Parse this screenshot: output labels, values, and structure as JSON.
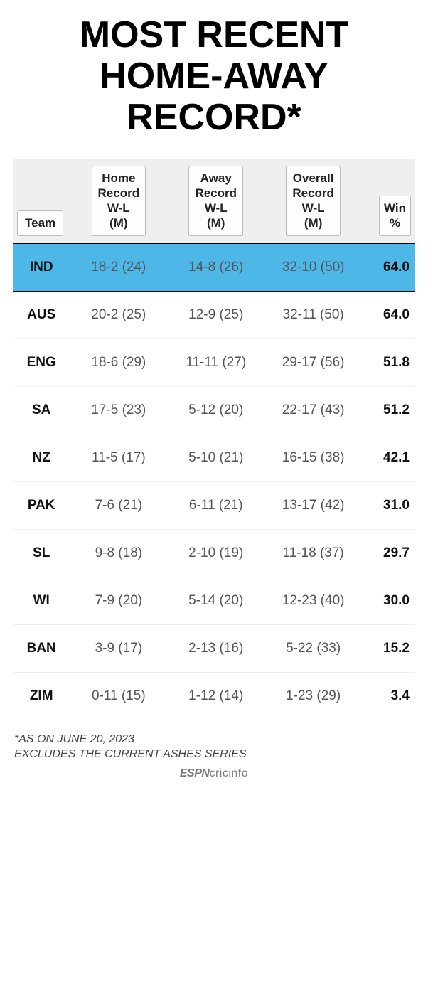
{
  "title": "MOST RECENT HOME-AWAY RECORD*",
  "columns": {
    "team": "Team",
    "home": "Home\nRecord\nW-L\n(M)",
    "away": "Away\nRecord\nW-L\n(M)",
    "overall": "Overall\nRecord\nW-L\n(M)",
    "win": "Win\n%"
  },
  "highlight_row_index": 0,
  "highlight_color": "#4db8e8",
  "rows": [
    {
      "team": "IND",
      "home": "18-2 (24)",
      "away": "14-8 (26)",
      "overall": "32-10 (50)",
      "win": "64.0"
    },
    {
      "team": "AUS",
      "home": "20-2 (25)",
      "away": "12-9 (25)",
      "overall": "32-11 (50)",
      "win": "64.0"
    },
    {
      "team": "ENG",
      "home": "18-6 (29)",
      "away": "11-11 (27)",
      "overall": "29-17 (56)",
      "win": "51.8"
    },
    {
      "team": "SA",
      "home": "17-5 (23)",
      "away": "5-12 (20)",
      "overall": "22-17 (43)",
      "win": "51.2"
    },
    {
      "team": "NZ",
      "home": "11-5 (17)",
      "away": "5-10 (21)",
      "overall": "16-15 (38)",
      "win": "42.1"
    },
    {
      "team": "PAK",
      "home": "7-6 (21)",
      "away": "6-11 (21)",
      "overall": "13-17 (42)",
      "win": "31.0"
    },
    {
      "team": "SL",
      "home": "9-8 (18)",
      "away": "2-10 (19)",
      "overall": "11-18 (37)",
      "win": "29.7"
    },
    {
      "team": "WI",
      "home": "7-9 (20)",
      "away": "5-14 (20)",
      "overall": "12-23 (40)",
      "win": "30.0"
    },
    {
      "team": "BAN",
      "home": "3-9 (17)",
      "away": "2-13 (16)",
      "overall": "5-22 (33)",
      "win": "15.2"
    },
    {
      "team": "ZIM",
      "home": "0-11 (15)",
      "away": "1-12 (14)",
      "overall": "1-23 (29)",
      "win": "3.4"
    }
  ],
  "footnotes": [
    "*AS ON JUNE 20, 2023",
    "EXCLUDES THE CURRENT ASHES SERIES"
  ],
  "brand": {
    "prefix": "ESPN",
    "suffix": "cricinfo"
  }
}
